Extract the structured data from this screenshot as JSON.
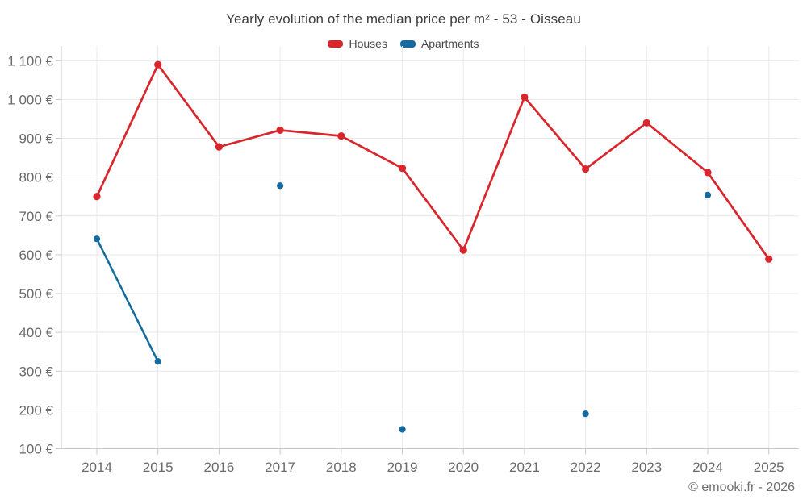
{
  "attribution": "© emooki.fr - 2026",
  "chart_data": {
    "type": "line",
    "title": "Yearly evolution of the median price per m² - 53 - Oisseau",
    "categories": [
      "2014",
      "2015",
      "2016",
      "2017",
      "2018",
      "2019",
      "2020",
      "2021",
      "2022",
      "2023",
      "2024",
      "2025"
    ],
    "series": [
      {
        "name": "Houses",
        "color": "#d8262c",
        "values": [
          750,
          1090,
          878,
          921,
          906,
          823,
          612,
          1006,
          821,
          940,
          812,
          589
        ]
      },
      {
        "name": "Apartments",
        "color": "#136a9e",
        "values": [
          641,
          325,
          null,
          778,
          null,
          150,
          null,
          null,
          190,
          null,
          754,
          null
        ]
      }
    ],
    "y_ticks": [
      {
        "value": 100,
        "label": "100 €"
      },
      {
        "value": 200,
        "label": "200 €"
      },
      {
        "value": 300,
        "label": "300 €"
      },
      {
        "value": 400,
        "label": "400 €"
      },
      {
        "value": 500,
        "label": "500 €"
      },
      {
        "value": 600,
        "label": "600 €"
      },
      {
        "value": 700,
        "label": "700 €"
      },
      {
        "value": 800,
        "label": "800 €"
      },
      {
        "value": 900,
        "label": "900 €"
      },
      {
        "value": 1000,
        "label": "1 000 €"
      },
      {
        "value": 1100,
        "label": "1 100 €"
      }
    ],
    "ylim": [
      100,
      1100
    ],
    "xlabel": "",
    "ylabel": "",
    "grid": true,
    "legend_position": "top"
  }
}
